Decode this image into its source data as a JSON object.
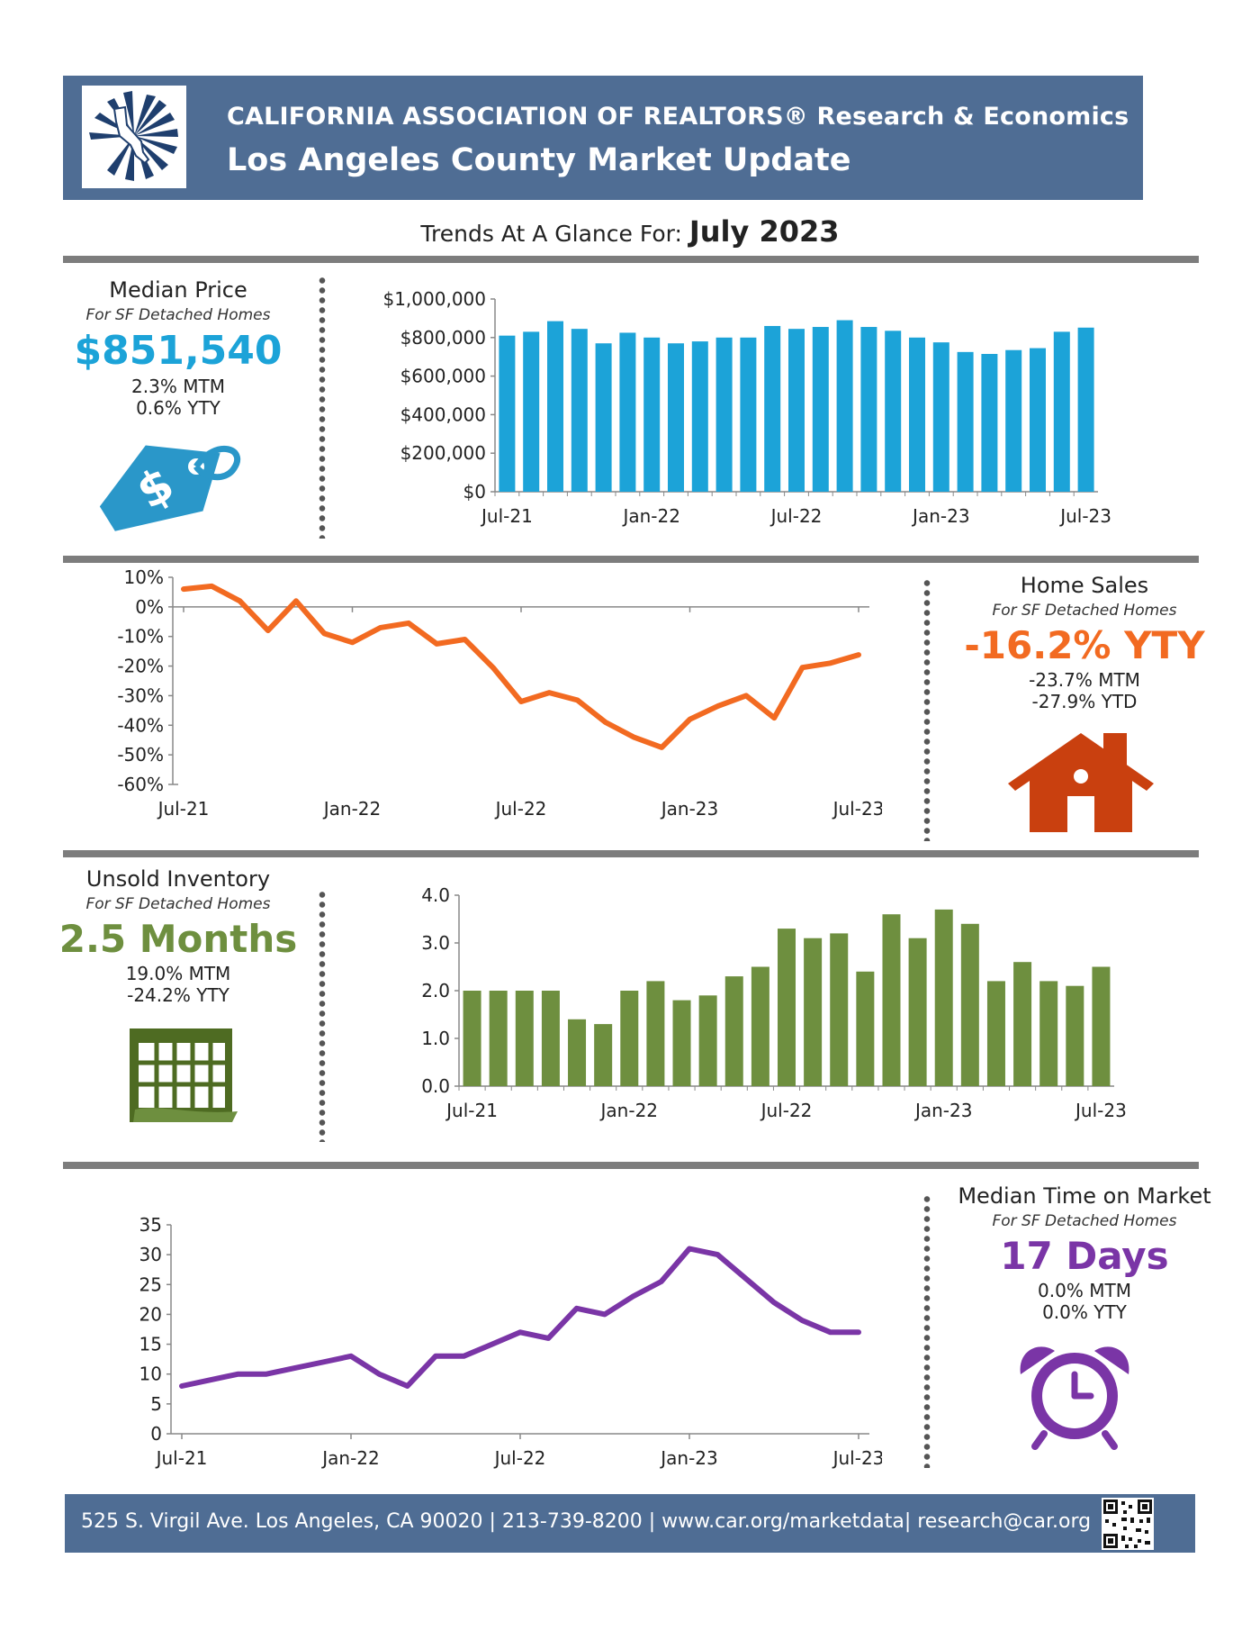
{
  "header": {
    "org": "CALIFORNIA ASSOCIATION OF REALTORS® Research & Economics",
    "title": "Los Angeles County Market Update"
  },
  "trend": {
    "prefix": "Trends At A Glance For:",
    "period": "July 2023"
  },
  "median_price": {
    "title": "Median Price",
    "subtitle": "For SF Detached Homes",
    "value": "$851,540",
    "mtm": "2.3% MTM",
    "yty": "0.6% YTY",
    "color": "#1ca3d8",
    "icon": "price-tag-icon"
  },
  "home_sales": {
    "title": "Home Sales",
    "subtitle": "For SF Detached Homes",
    "value": "-16.2% YTY",
    "mtm": "-23.7% MTM",
    "ytd": "-27.9% YTD",
    "color": "#f26a21",
    "icon": "house-icon"
  },
  "inventory": {
    "title": "Unsold Inventory",
    "subtitle": "For SF Detached Homes",
    "value": "2.5 Months",
    "mtm": "19.0% MTM",
    "yty": "-24.2% YTY",
    "color": "#6e8f3f",
    "icon": "calendar-icon"
  },
  "time_on_market": {
    "title": "Median Time on Market",
    "subtitle": "For SF Detached Homes",
    "value": "17 Days",
    "mtm": "0.0% MTM",
    "yty": "0.0% YTY",
    "color": "#7a35a6",
    "icon": "alarm-clock-icon"
  },
  "footer": {
    "text": "525 S. Virgil Ave. Los Angeles, CA 90020  |  213-739-8200  |  www.car.org/marketdata|  research@car.org",
    "qr": "qr-code-icon"
  },
  "chart_data": [
    {
      "id": "median-price-chart",
      "type": "bar",
      "color": "#1ca3d8",
      "ylim": [
        0,
        1000000
      ],
      "yticks": [
        0,
        200000,
        400000,
        600000,
        800000,
        1000000
      ],
      "ytick_labels": [
        "$0",
        "$200,000",
        "$400,000",
        "$600,000",
        "$800,000",
        "$1,000,000"
      ],
      "xtick_labels": [
        "Jul-21",
        "Jan-22",
        "Jul-22",
        "Jan-23",
        "Jul-23"
      ],
      "xtick_index": [
        0,
        6,
        12,
        18,
        24
      ],
      "categories": [
        "Jul-21",
        "Aug-21",
        "Sep-21",
        "Oct-21",
        "Nov-21",
        "Dec-21",
        "Jan-22",
        "Feb-22",
        "Mar-22",
        "Apr-22",
        "May-22",
        "Jun-22",
        "Jul-22",
        "Aug-22",
        "Sep-22",
        "Oct-22",
        "Nov-22",
        "Dec-22",
        "Jan-23",
        "Feb-23",
        "Mar-23",
        "Apr-23",
        "May-23",
        "Jun-23",
        "Jul-23"
      ],
      "values": [
        810000,
        830000,
        885000,
        845000,
        770000,
        825000,
        800000,
        770000,
        780000,
        800000,
        800000,
        860000,
        845000,
        855000,
        890000,
        855000,
        835000,
        800000,
        775000,
        725000,
        715000,
        735000,
        745000,
        830000,
        851540
      ]
    },
    {
      "id": "home-sales-chart",
      "type": "line",
      "color": "#f26a21",
      "ylim": [
        -60,
        10
      ],
      "yticks": [
        -60,
        -50,
        -40,
        -30,
        -20,
        -10,
        0,
        10
      ],
      "ytick_labels": [
        "-60%",
        "-50%",
        "-40%",
        "-30%",
        "-20%",
        "-10%",
        "0%",
        "10%"
      ],
      "xtick_labels": [
        "Jul-21",
        "Jan-22",
        "Jul-22",
        "Jan-23",
        "Jul-23"
      ],
      "xtick_index": [
        0,
        6,
        12,
        18,
        24
      ],
      "values": [
        6,
        7,
        2,
        -8,
        2,
        -9,
        -12,
        -7,
        -5.5,
        -12.5,
        -11,
        -20.5,
        -32,
        -29,
        -31.5,
        -39,
        -44,
        -47.5,
        -38,
        -33.5,
        -30,
        -37.5,
        -20.5,
        -19,
        -16.2
      ]
    },
    {
      "id": "inventory-chart",
      "type": "bar",
      "color": "#6e8f3f",
      "ylim": [
        0,
        4
      ],
      "yticks": [
        0,
        1,
        2,
        3,
        4
      ],
      "ytick_labels": [
        "0.0",
        "1.0",
        "2.0",
        "3.0",
        "4.0"
      ],
      "xtick_labels": [
        "Jul-21",
        "Jan-22",
        "Jul-22",
        "Jan-23",
        "Jul-23"
      ],
      "xtick_index": [
        0,
        6,
        12,
        18,
        24
      ],
      "values": [
        2.0,
        2.0,
        2.0,
        2.0,
        1.4,
        1.3,
        2.0,
        2.2,
        1.8,
        1.9,
        2.3,
        2.5,
        3.3,
        3.1,
        3.2,
        2.4,
        3.6,
        3.1,
        3.7,
        3.4,
        2.2,
        2.6,
        2.2,
        2.1,
        2.5
      ]
    },
    {
      "id": "time-on-market-chart",
      "type": "line",
      "color": "#7a35a6",
      "ylim": [
        0,
        35
      ],
      "yticks": [
        0,
        5,
        10,
        15,
        20,
        25,
        30,
        35
      ],
      "ytick_labels": [
        "0",
        "5",
        "10",
        "15",
        "20",
        "25",
        "30",
        "35"
      ],
      "xtick_labels": [
        "Jul-21",
        "Jan-22",
        "Jul-22",
        "Jan-23",
        "Jul-23"
      ],
      "xtick_index": [
        0,
        6,
        12,
        18,
        24
      ],
      "values": [
        8,
        9,
        10,
        10,
        11,
        12,
        13,
        10,
        8,
        13,
        13,
        15,
        17,
        16,
        21,
        20,
        23,
        25.5,
        31,
        30,
        26,
        22,
        19,
        17,
        17
      ]
    }
  ]
}
